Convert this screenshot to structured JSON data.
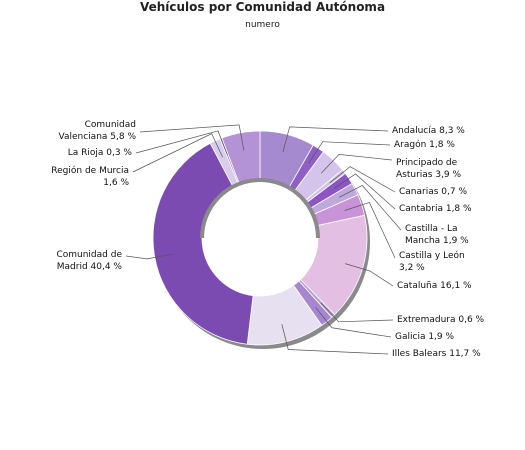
{
  "chart_data": {
    "type": "pie",
    "donut": true,
    "title": "Vehículos por Comunidad Autónoma",
    "subtitle": "numero",
    "start_angle_deg": 0,
    "direction": "clockwise",
    "slices": [
      {
        "label": "Andalucía",
        "value": 8.3,
        "display": "Andalucía 8,3 %",
        "color": "#a68ad0"
      },
      {
        "label": "Aragón",
        "value": 1.8,
        "display": "Aragón 1,8 %",
        "color": "#8e5fc4"
      },
      {
        "label": "Principado de Asturias",
        "value": 3.9,
        "display": "Principado de Asturias 3,9 %",
        "color": "#d4c3ea"
      },
      {
        "label": "Canarias",
        "value": 0.7,
        "display": "Canarias 0,7 %",
        "color": "#cfc0e6"
      },
      {
        "label": "Cantabria",
        "value": 1.8,
        "display": "Cantabria 1,8 %",
        "color": "#8d55c4"
      },
      {
        "label": "Castilla - La Mancha",
        "value": 1.9,
        "display": "Castilla - La Mancha 1,9 %",
        "color": "#bfa8dc"
      },
      {
        "label": "Castilla y León",
        "value": 3.2,
        "display": "Castilla y León 3,2 %",
        "color": "#c993d8"
      },
      {
        "label": "Cataluña",
        "value": 16.1,
        "display": "Cataluña 16,1 %",
        "color": "#e4bfe4"
      },
      {
        "label": "Extremadura",
        "value": 0.6,
        "display": "Extremadura 0,6 %",
        "color": "#b6a0d4"
      },
      {
        "label": "Galicia",
        "value": 1.9,
        "display": "Galicia 1,9 %",
        "color": "#a687cf"
      },
      {
        "label": "Illes Balears",
        "value": 11.7,
        "display": "Illes Balears 11,7 %",
        "color": "#e6e0f1"
      },
      {
        "label": "Comunidad de Madrid",
        "value": 40.4,
        "display": "Comunidad de Madrid 40,4 %",
        "color": "#7b4bb2"
      },
      {
        "label": "Región de Murcia",
        "value": 1.6,
        "display": "Región de Murcia 1,6 %",
        "color": "#d8cced"
      },
      {
        "label": "La Rioja",
        "value": 0.3,
        "display": "La Rioja 0,3 %",
        "color": "#9a78c6"
      },
      {
        "label": "Comunidad Valenciana",
        "value": 5.8,
        "display": "Comunidad Valenciana 5,8 %",
        "color": "#b392d6"
      }
    ],
    "labels": [
      {
        "lines": [
          "Andalucía 8,3 %"
        ]
      },
      {
        "lines": [
          "Aragón 1,8 %"
        ]
      },
      {
        "lines": [
          "Principado de",
          "Asturias 3,9 %"
        ]
      },
      {
        "lines": [
          "Canarias 0,7 %"
        ]
      },
      {
        "lines": [
          "Cantabria 1,8 %"
        ]
      },
      {
        "lines": [
          "Castilla - La",
          "Mancha 1,9 %"
        ]
      },
      {
        "lines": [
          "Castilla y León",
          "3,2 %"
        ]
      },
      {
        "lines": [
          "Cataluña 16,1 %"
        ]
      },
      {
        "lines": [
          "Extremadura 0,6 %"
        ]
      },
      {
        "lines": [
          "Galicia 1,9 %"
        ]
      },
      {
        "lines": [
          "Illes Balears 11,7 %"
        ]
      },
      {
        "lines": [
          "Comunidad de",
          "Madrid 40,4 %"
        ]
      },
      {
        "lines": [
          "Región de Murcia",
          "1,6 %"
        ]
      },
      {
        "lines": [
          "La Rioja 0,3 %"
        ]
      },
      {
        "lines": [
          "Comunidad",
          "Valenciana 5,8 %"
        ]
      }
    ],
    "legend": "none"
  }
}
